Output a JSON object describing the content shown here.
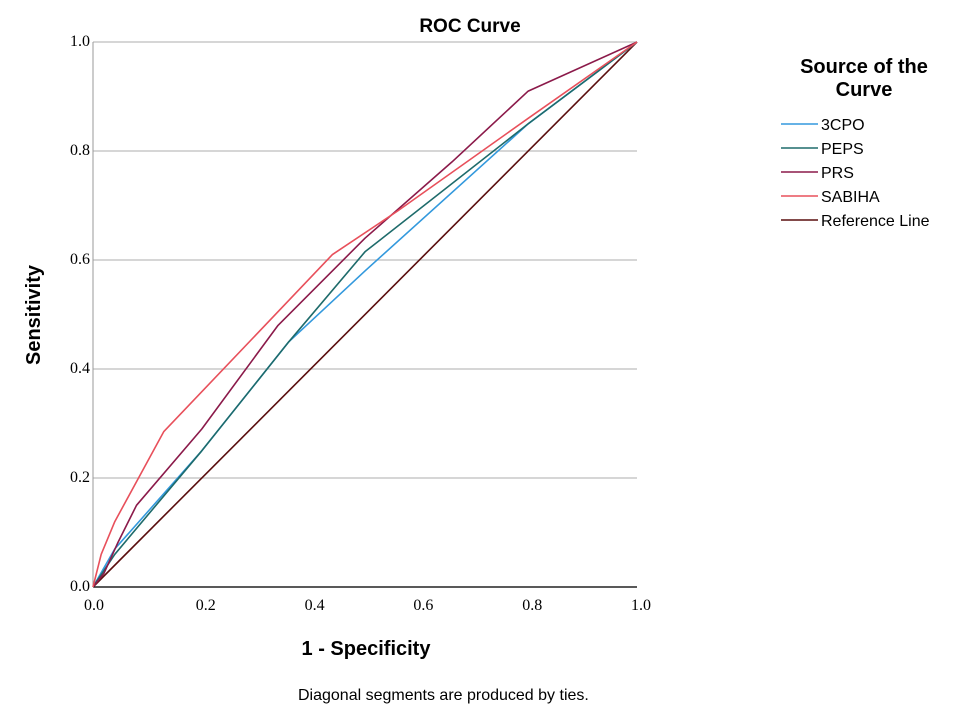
{
  "chart_data": {
    "type": "line",
    "title": "ROC Curve",
    "xlabel": "1 - Specificity",
    "ylabel": "Sensitivity",
    "xlim": [
      0,
      1
    ],
    "ylim": [
      0,
      1
    ],
    "x_ticks": [
      "0.0",
      "0.2",
      "0.4",
      "0.6",
      "0.8",
      "1.0"
    ],
    "y_ticks": [
      "0.0",
      "0.2",
      "0.4",
      "0.6",
      "0.8",
      "1.0"
    ],
    "grid": "horizontal",
    "legend": {
      "title_lines": [
        "Source of the",
        "Curve"
      ],
      "position": "right"
    },
    "footnote": "Diagonal segments are produced by ties.",
    "series": [
      {
        "name": "3CPO",
        "color": "#3399dd",
        "points": [
          [
            0,
            0
          ],
          [
            0.04,
            0.07
          ],
          [
            0.2,
            0.25
          ],
          [
            0.36,
            0.45
          ],
          [
            0.5,
            0.58
          ],
          [
            0.8,
            0.85
          ],
          [
            1,
            1
          ]
        ]
      },
      {
        "name": "PEPS",
        "color": "#1e6b6b",
        "points": [
          [
            0,
            0
          ],
          [
            0.04,
            0.06
          ],
          [
            0.2,
            0.25
          ],
          [
            0.36,
            0.45
          ],
          [
            0.5,
            0.615
          ],
          [
            0.8,
            0.85
          ],
          [
            1,
            1
          ]
        ]
      },
      {
        "name": "PRS",
        "color": "#8b1a4a",
        "points": [
          [
            0,
            0
          ],
          [
            0.02,
            0.025
          ],
          [
            0.045,
            0.08
          ],
          [
            0.08,
            0.15
          ],
          [
            0.2,
            0.29
          ],
          [
            0.34,
            0.48
          ],
          [
            0.5,
            0.64
          ],
          [
            0.66,
            0.78
          ],
          [
            0.8,
            0.91
          ],
          [
            1,
            1
          ]
        ]
      },
      {
        "name": "SABIHA",
        "color": "#e8505b",
        "points": [
          [
            0,
            0
          ],
          [
            0.015,
            0.06
          ],
          [
            0.04,
            0.12
          ],
          [
            0.13,
            0.285
          ],
          [
            0.44,
            0.61
          ],
          [
            0.56,
            0.69
          ],
          [
            0.8,
            0.86
          ],
          [
            1,
            1
          ]
        ]
      },
      {
        "name": "Reference Line",
        "color": "#5a0e0e",
        "points": [
          [
            0,
            0
          ],
          [
            1,
            1
          ]
        ]
      }
    ]
  }
}
